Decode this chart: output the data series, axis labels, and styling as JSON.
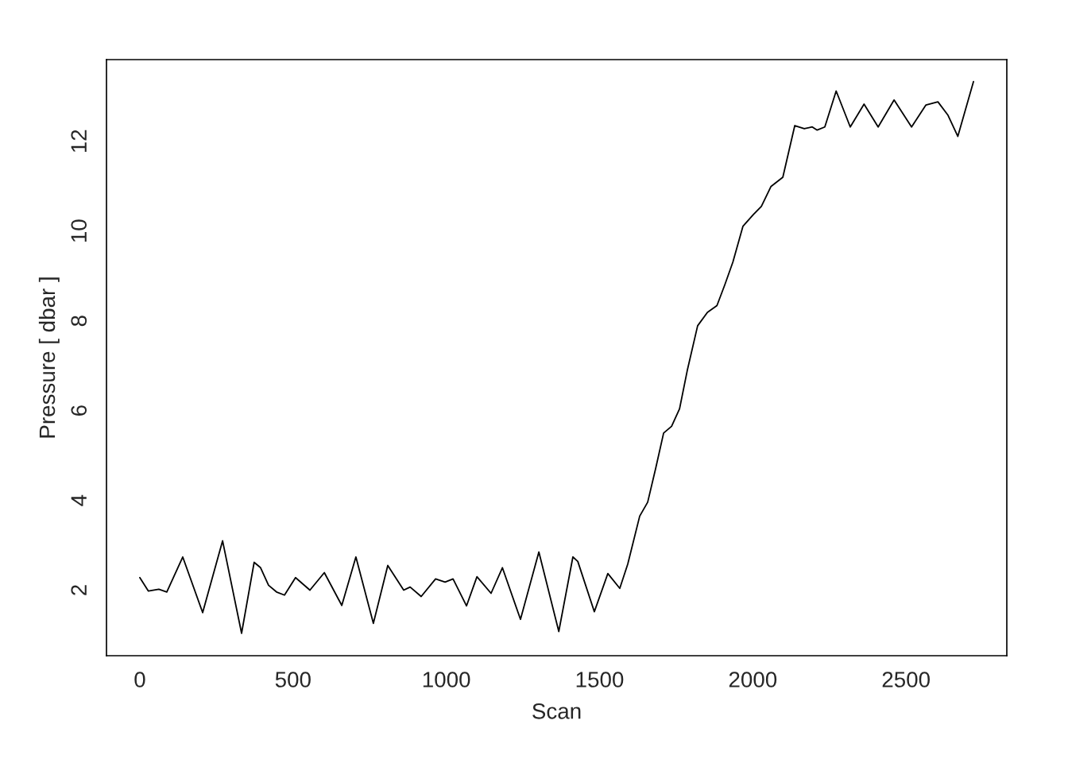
{
  "chart_data": {
    "type": "line",
    "xlabel": "Scan",
    "ylabel": "Pressure [ dbar ]",
    "xlim": [
      -108.8,
      2828.8
    ],
    "ylim": [
      0.54,
      13.82
    ],
    "xticks": [
      0,
      500,
      1000,
      1500,
      2000,
      2500
    ],
    "yticks": [
      2,
      4,
      6,
      8,
      10,
      12
    ],
    "grid": false,
    "legend": false,
    "x": [
      0,
      28,
      62,
      88,
      140,
      205,
      270,
      332,
      373,
      394,
      420,
      446,
      472,
      508,
      555,
      602,
      659,
      705,
      762,
      809,
      861,
      882,
      918,
      965,
      996,
      1022,
      1066,
      1100,
      1146,
      1183,
      1242,
      1302,
      1367,
      1413,
      1429,
      1483,
      1527,
      1566,
      1592,
      1631,
      1657,
      1683,
      1709,
      1735,
      1761,
      1787,
      1820,
      1852,
      1883,
      1909,
      1935,
      1968,
      2002,
      2028,
      2059,
      2098,
      2137,
      2168,
      2194,
      2210,
      2235,
      2272,
      2318,
      2363,
      2409,
      2461,
      2518,
      2565,
      2604,
      2637,
      2669,
      2720
    ],
    "series": [
      {
        "color": "#000000",
        "values": [
          2.28,
          1.98,
          2.02,
          1.96,
          2.74,
          1.5,
          3.1,
          1.04,
          2.62,
          2.5,
          2.11,
          1.96,
          1.89,
          2.28,
          2.0,
          2.39,
          1.66,
          2.74,
          1.26,
          2.55,
          2.0,
          2.07,
          1.86,
          2.25,
          2.18,
          2.25,
          1.65,
          2.3,
          1.93,
          2.5,
          1.35,
          2.85,
          1.08,
          2.74,
          2.64,
          1.52,
          2.37,
          2.04,
          2.58,
          3.65,
          3.96,
          4.71,
          5.5,
          5.65,
          6.04,
          6.92,
          7.89,
          8.19,
          8.34,
          8.81,
          9.31,
          10.11,
          10.37,
          10.55,
          10.99,
          11.2,
          12.35,
          12.28,
          12.32,
          12.25,
          12.32,
          13.12,
          12.32,
          12.83,
          12.32,
          12.92,
          12.32,
          12.81,
          12.88,
          12.58,
          12.11,
          13.33
        ]
      }
    ]
  }
}
